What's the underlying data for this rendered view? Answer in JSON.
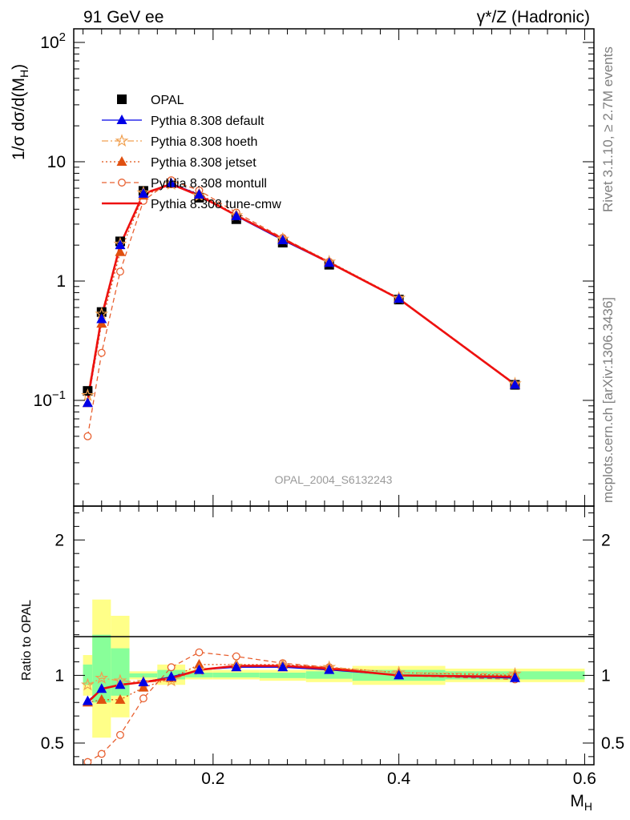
{
  "header": {
    "left": "91 GeV ee",
    "right": "γ*/Z (Hadronic)"
  },
  "side": {
    "rivet": "Rivet 3.1.10, ≥ 2.7M events",
    "mcplots": "mcplots.cern.ch [arXiv:1306.3436]"
  },
  "watermark": "OPAL_2004_S6132243",
  "chart_data": [
    {
      "type": "line",
      "role": "main",
      "ylabel": "1/σ dσ/d(M_H)",
      "yscale": "log",
      "ylim": [
        0.013,
        130
      ],
      "xlim": [
        0.05,
        0.61
      ],
      "yticks": [
        {
          "v": 0.1,
          "base": "10",
          "exp": "−1"
        },
        {
          "v": 1,
          "base": "1",
          "exp": ""
        },
        {
          "v": 10,
          "base": "10",
          "exp": ""
        },
        {
          "v": 100,
          "base": "10",
          "exp": "2"
        }
      ],
      "x": [
        0.065,
        0.08,
        0.1,
        0.125,
        0.155,
        0.185,
        0.225,
        0.275,
        0.325,
        0.4,
        0.525
      ],
      "series": [
        {
          "name": "OPAL",
          "color": "#000000",
          "marker": "square",
          "line": "none",
          "values": [
            0.12,
            0.55,
            2.15,
            5.7,
            6.6,
            5.0,
            3.3,
            2.1,
            1.37,
            0.7,
            0.135
          ]
        },
        {
          "name": "Pythia 8.308 default",
          "color": "#0000e6",
          "marker": "triangle",
          "line": "solid",
          "values": [
            0.095,
            0.48,
            2.0,
            5.4,
            6.6,
            5.3,
            3.5,
            2.2,
            1.42,
            0.71,
            0.135
          ]
        },
        {
          "name": "Pythia 8.308 hoeth",
          "color": "#f0a050",
          "marker": "star",
          "line": "dashdot",
          "values": [
            0.11,
            0.53,
            2.05,
            5.5,
            6.5,
            5.2,
            3.55,
            2.25,
            1.45,
            0.72,
            0.138
          ]
        },
        {
          "name": "Pythia 8.308 jetset",
          "color": "#e05010",
          "marker": "triangle",
          "line": "dotted",
          "values": [
            0.095,
            0.44,
            1.75,
            5.2,
            6.5,
            5.4,
            3.6,
            2.28,
            1.46,
            0.72,
            0.137
          ]
        },
        {
          "name": "Pythia 8.308 montull",
          "color": "#e86030",
          "marker": "circle",
          "line": "dashed",
          "values": [
            0.05,
            0.25,
            1.2,
            4.7,
            7.0,
            5.75,
            3.75,
            2.3,
            1.45,
            0.71,
            0.135
          ]
        },
        {
          "name": "Pythia 8.308 tune-cmw",
          "color": "#ee1010",
          "marker": "none",
          "line": "thick",
          "values": [
            0.1,
            0.5,
            2.0,
            5.4,
            6.5,
            5.2,
            3.55,
            2.25,
            1.43,
            0.71,
            0.136
          ]
        }
      ]
    },
    {
      "type": "line",
      "role": "ratio",
      "ylabel": "Ratio to OPAL",
      "xlabel": "M_H",
      "ylim": [
        0.34,
        2.25
      ],
      "yticks": [
        0.5,
        1,
        2
      ],
      "ytick_labels": [
        "0.5",
        "1",
        "2"
      ],
      "xticks": [
        0.2,
        0.4,
        0.6
      ],
      "xtick_labels": [
        "0.2",
        "0.4",
        "0.6"
      ],
      "bands": {
        "edges": [
          0.06,
          0.07,
          0.09,
          0.11,
          0.14,
          0.17,
          0.2,
          0.25,
          0.3,
          0.35,
          0.45,
          0.6
        ],
        "yellow": [
          [
            0.85,
            1.15
          ],
          [
            0.54,
            1.56
          ],
          [
            0.69,
            1.44
          ],
          [
            0.97,
            1.03
          ],
          [
            0.93,
            1.08
          ],
          [
            0.97,
            1.04
          ],
          [
            0.97,
            1.04
          ],
          [
            0.96,
            1.04
          ],
          [
            0.95,
            1.05
          ],
          [
            0.93,
            1.07
          ],
          [
            0.95,
            1.05
          ]
        ],
        "green": [
          [
            0.93,
            1.08
          ],
          [
            0.8,
            1.3
          ],
          [
            0.85,
            1.2
          ],
          [
            0.985,
            1.015
          ],
          [
            0.97,
            1.04
          ],
          [
            0.985,
            1.02
          ],
          [
            0.985,
            1.02
          ],
          [
            0.98,
            1.02
          ],
          [
            0.975,
            1.03
          ],
          [
            0.96,
            1.04
          ],
          [
            0.97,
            1.03
          ]
        ]
      },
      "series": [
        {
          "name": "Pythia 8.308 default",
          "values": [
            0.81,
            0.9,
            0.93,
            0.95,
            0.99,
            1.04,
            1.06,
            1.06,
            1.04,
            1.0,
            0.98
          ]
        },
        {
          "name": "Pythia 8.308 hoeth",
          "values": [
            0.93,
            0.98,
            0.96,
            0.95,
            0.96,
            1.04,
            1.07,
            1.07,
            1.06,
            1.02,
            1.01
          ]
        },
        {
          "name": "Pythia 8.308 jetset",
          "values": [
            0.8,
            0.82,
            0.82,
            0.91,
            0.98,
            1.08,
            1.08,
            1.08,
            1.06,
            1.02,
            1.0
          ]
        },
        {
          "name": "Pythia 8.308 montull",
          "values": [
            0.36,
            0.42,
            0.56,
            0.83,
            1.06,
            1.17,
            1.14,
            1.09,
            1.06,
            1.0,
            0.97
          ]
        },
        {
          "name": "Pythia 8.308 tune-cmw",
          "values": [
            0.8,
            0.9,
            0.93,
            0.95,
            0.98,
            1.04,
            1.07,
            1.07,
            1.05,
            1.0,
            0.99
          ]
        }
      ]
    }
  ]
}
